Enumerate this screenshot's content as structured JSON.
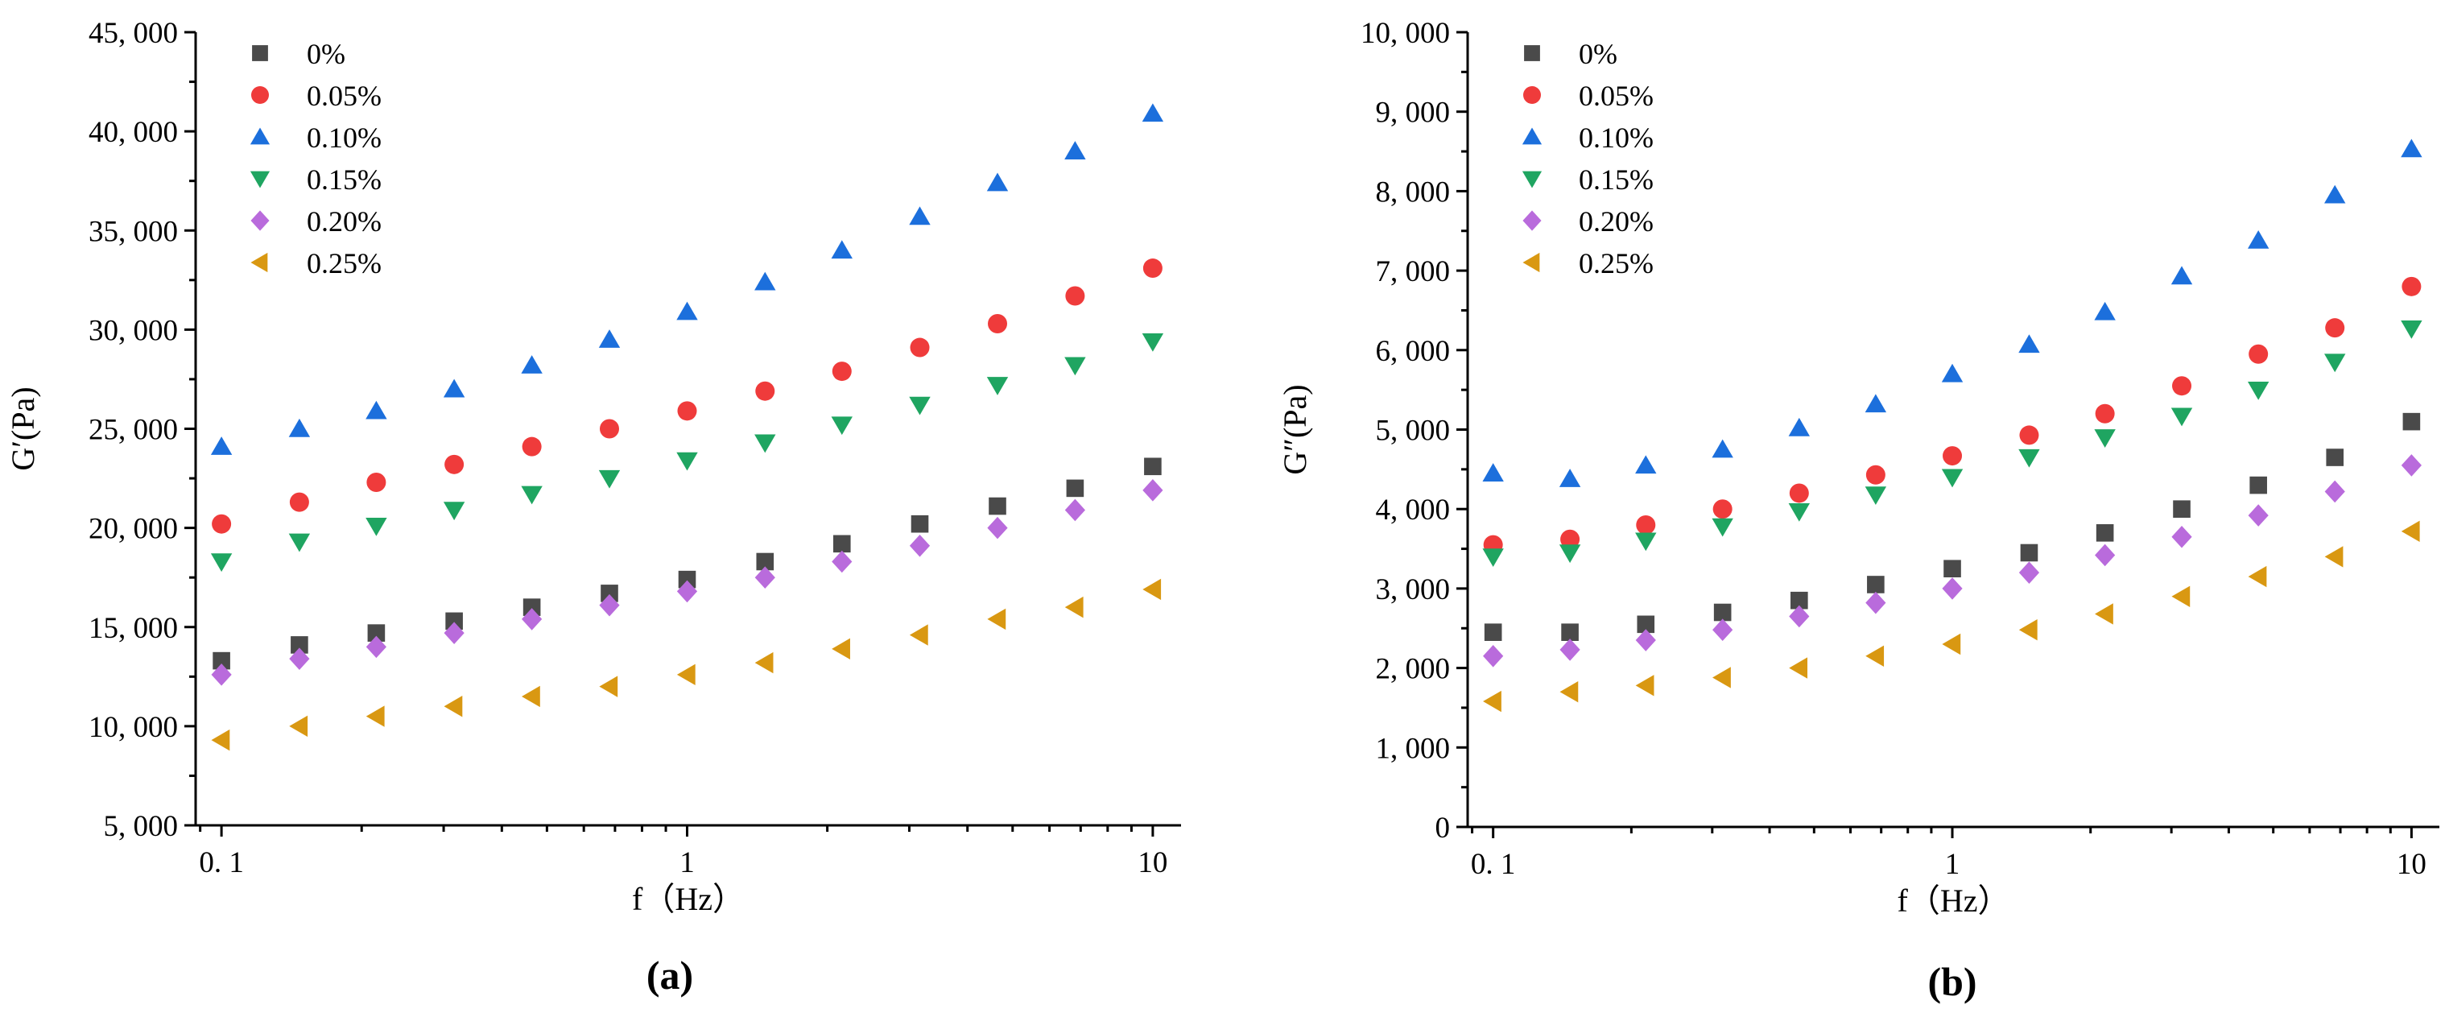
{
  "chart_data": [
    {
      "type": "scatter",
      "panel_label": "(a)",
      "xlabel": "f（Hz）",
      "ylabel": "G′(Pa)",
      "xscale": "log",
      "xlim": [
        0.088,
        11.5
      ],
      "ylim": [
        5000,
        45000
      ],
      "yticks": [
        5000,
        10000,
        15000,
        20000,
        25000,
        30000,
        35000,
        40000,
        45000
      ],
      "ytick_labels": [
        "5, 000",
        "10, 000",
        "15, 000",
        "20, 000",
        "25, 000",
        "30, 000",
        "35, 000",
        "40, 000",
        "45, 000"
      ],
      "xticks": [
        0.1,
        1,
        10
      ],
      "xtick_labels": [
        "0. 1",
        "1",
        "10"
      ],
      "legend_position": "top-left",
      "x": [
        0.1,
        0.147,
        0.215,
        0.316,
        0.464,
        0.681,
        1,
        1.47,
        2.15,
        3.16,
        4.64,
        6.81,
        10
      ],
      "series": [
        {
          "name": "0%",
          "marker": "square",
          "color": "#4a4a4a",
          "values": [
            13300,
            14100,
            14700,
            15300,
            16000,
            16700,
            17400,
            18300,
            19200,
            20200,
            21100,
            22000,
            23100
          ]
        },
        {
          "name": "0.05%",
          "marker": "circle",
          "color": "#ef3b3b",
          "values": [
            20200,
            21300,
            22300,
            23200,
            24100,
            25000,
            25900,
            26900,
            27900,
            29100,
            30300,
            31700,
            33100
          ]
        },
        {
          "name": "0.10%",
          "marker": "triangle-up",
          "color": "#1c6fdc",
          "values": [
            24100,
            25000,
            25900,
            27000,
            28200,
            29500,
            30900,
            32400,
            34000,
            35700,
            37400,
            39000,
            40900
          ]
        },
        {
          "name": "0.15%",
          "marker": "triangle-down",
          "color": "#1fa561",
          "values": [
            18300,
            19300,
            20100,
            20900,
            21700,
            22500,
            23400,
            24300,
            25200,
            26200,
            27200,
            28200,
            29400
          ]
        },
        {
          "name": "0.20%",
          "marker": "diamond",
          "color": "#b96bdc",
          "values": [
            12600,
            13400,
            14000,
            14700,
            15400,
            16100,
            16800,
            17500,
            18300,
            19100,
            20000,
            20900,
            21900
          ]
        },
        {
          "name": "0.25%",
          "marker": "triangle-left",
          "color": "#d99812",
          "values": [
            9300,
            10000,
            10500,
            11000,
            11500,
            12000,
            12600,
            13200,
            13900,
            14600,
            15400,
            16000,
            16900
          ]
        }
      ]
    },
    {
      "type": "scatter",
      "panel_label": "(b)",
      "xlabel": "f（Hz）",
      "ylabel": "G″(Pa)",
      "xscale": "log",
      "xlim": [
        0.088,
        11.5
      ],
      "ylim": [
        0,
        10000
      ],
      "yticks": [
        0,
        1000,
        2000,
        3000,
        4000,
        5000,
        6000,
        7000,
        8000,
        9000,
        10000
      ],
      "ytick_labels": [
        "0",
        "1, 000",
        "2, 000",
        "3, 000",
        "4, 000",
        "5, 000",
        "6, 000",
        "7, 000",
        "8, 000",
        "9, 000",
        "10, 000"
      ],
      "xticks": [
        0.1,
        1,
        10
      ],
      "xtick_labels": [
        "0. 1",
        "1",
        "10"
      ],
      "legend_position": "top-left",
      "x": [
        0.1,
        0.147,
        0.215,
        0.316,
        0.464,
        0.681,
        1,
        1.47,
        2.15,
        3.16,
        4.64,
        6.81,
        10
      ],
      "series": [
        {
          "name": "0%",
          "marker": "square",
          "color": "#4a4a4a",
          "values": [
            2450,
            2450,
            2550,
            2700,
            2850,
            3050,
            3250,
            3450,
            3700,
            4000,
            4300,
            4650,
            5100
          ]
        },
        {
          "name": "0.05%",
          "marker": "circle",
          "color": "#ef3b3b",
          "values": [
            3550,
            3620,
            3800,
            4000,
            4200,
            4430,
            4670,
            4930,
            5200,
            5550,
            5950,
            6280,
            6800
          ]
        },
        {
          "name": "0.10%",
          "marker": "triangle-up",
          "color": "#1c6fdc",
          "values": [
            4450,
            4380,
            4550,
            4750,
            5020,
            5320,
            5700,
            6070,
            6480,
            6930,
            7380,
            7950,
            8530
          ]
        },
        {
          "name": "0.15%",
          "marker": "triangle-down",
          "color": "#1fa561",
          "values": [
            3400,
            3450,
            3600,
            3780,
            3970,
            4180,
            4400,
            4650,
            4900,
            5170,
            5500,
            5850,
            6270
          ]
        },
        {
          "name": "0.20%",
          "marker": "diamond",
          "color": "#b96bdc",
          "values": [
            2150,
            2230,
            2350,
            2480,
            2650,
            2820,
            3000,
            3200,
            3420,
            3650,
            3920,
            4220,
            4550
          ]
        },
        {
          "name": "0.25%",
          "marker": "triangle-left",
          "color": "#d99812",
          "values": [
            1580,
            1700,
            1780,
            1880,
            2000,
            2150,
            2300,
            2480,
            2680,
            2900,
            3150,
            3400,
            3720
          ]
        }
      ]
    }
  ]
}
